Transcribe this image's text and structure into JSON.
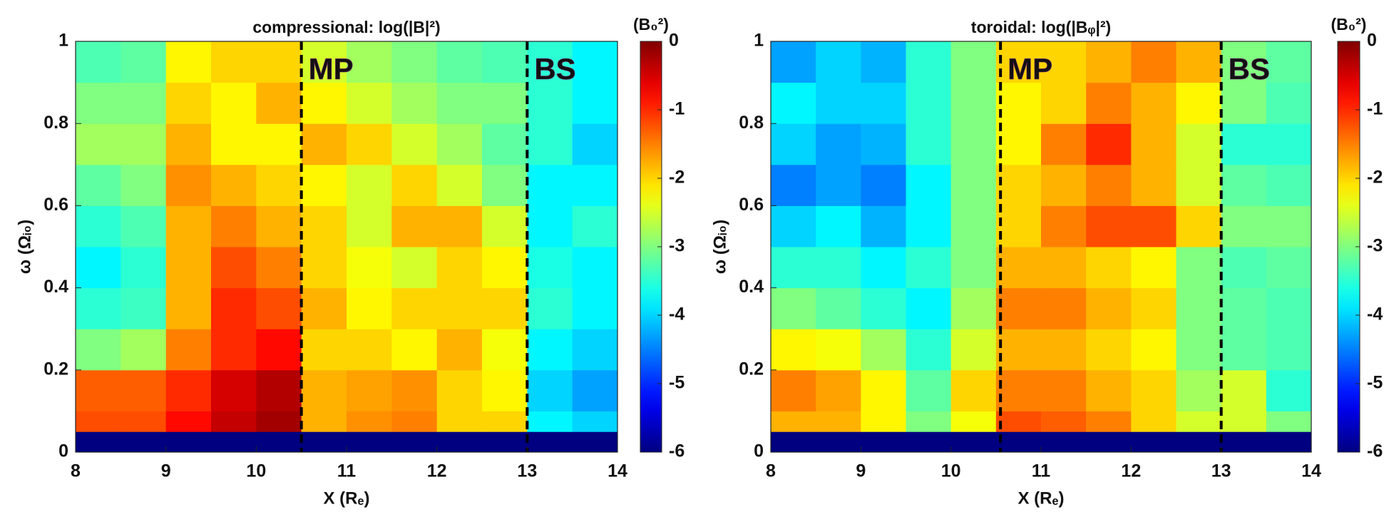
{
  "chart_data": [
    {
      "type": "heatmap",
      "title": "compressional: log(|B|²)",
      "xlabel": "X (Rₑ)",
      "ylabel": "ω (Ωᵢ₀)",
      "colorbar_label": "(B₀²)",
      "colormap": "jet",
      "xlim": [
        8,
        14
      ],
      "ylim": [
        0,
        1
      ],
      "xticks": [
        8,
        9,
        10,
        11,
        12,
        13,
        14
      ],
      "yticks": [
        0,
        0.2,
        0.4,
        0.6,
        0.8,
        1
      ],
      "clim": [
        -6,
        0
      ],
      "cticks": [
        -6,
        -5,
        -4,
        -3,
        -2,
        -1,
        0
      ],
      "x": [
        8,
        8.5,
        9,
        9.5,
        10,
        10.5,
        11,
        11.5,
        12,
        12.5,
        13,
        13.5,
        14
      ],
      "y": [
        0,
        0.05,
        0.1,
        0.2,
        0.3,
        0.4,
        0.5,
        0.6,
        0.7,
        0.8,
        0.9,
        1
      ],
      "z": [
        [
          -6,
          -6,
          -6,
          -6,
          -6,
          -6,
          -6,
          -6,
          -6,
          -6,
          -6,
          -6
        ],
        [
          -1.2,
          -1.2,
          -0.8,
          -0.4,
          -0.2,
          -1.8,
          -1.6,
          -1.5,
          -2,
          -2,
          -3.8,
          -4
        ],
        [
          -1.3,
          -1.3,
          -1,
          -0.5,
          -0.3,
          -1.8,
          -1.7,
          -1.6,
          -2,
          -2.2,
          -4,
          -4.3
        ],
        [
          -3,
          -2.8,
          -1.5,
          -1,
          -0.8,
          -2,
          -2,
          -2.2,
          -1.8,
          -2.3,
          -3.8,
          -4
        ],
        [
          -3.5,
          -3.4,
          -1.8,
          -1,
          -1.2,
          -1.8,
          -2.2,
          -2,
          -2,
          -2,
          -3.5,
          -3.8
        ],
        [
          -3.8,
          -3.5,
          -1.8,
          -1.2,
          -1.5,
          -2,
          -2.3,
          -2.5,
          -2,
          -2.2,
          -3.6,
          -3.8
        ],
        [
          -3.5,
          -3.3,
          -1.8,
          -1.5,
          -1.8,
          -2,
          -2.5,
          -1.8,
          -1.8,
          -2.5,
          -3.8,
          -3.5
        ],
        [
          -3.2,
          -3,
          -1.6,
          -1.8,
          -2,
          -2.2,
          -2.5,
          -2,
          -2.5,
          -3,
          -3.8,
          -3.8
        ],
        [
          -2.8,
          -2.8,
          -1.8,
          -2.2,
          -2.2,
          -1.8,
          -2,
          -2.5,
          -2.8,
          -3.2,
          -3.5,
          -4
        ],
        [
          -3,
          -3,
          -2,
          -2.2,
          -1.8,
          -2.2,
          -2.5,
          -2.8,
          -3,
          -3,
          -3.5,
          -3.8
        ],
        [
          -3.3,
          -3.2,
          -2.2,
          -2,
          -2,
          -2.5,
          -2.8,
          -3,
          -3.2,
          -3.3,
          -3.5,
          -3.8
        ]
      ],
      "vlines": [
        {
          "x": 10.5,
          "label": "MP"
        },
        {
          "x": 13,
          "label": "BS"
        }
      ],
      "vline_color": "#000000",
      "annotation_color": "#d94bd9"
    },
    {
      "type": "heatmap",
      "title": "toroidal: log(|Bᵩ|²)",
      "xlabel": "X (Rₑ)",
      "ylabel": "ω (Ωᵢ₀)",
      "colorbar_label": "(B₀²)",
      "colormap": "jet",
      "xlim": [
        8,
        14
      ],
      "ylim": [
        0,
        1
      ],
      "xticks": [
        8,
        9,
        10,
        11,
        12,
        13,
        14
      ],
      "yticks": [
        0,
        0.2,
        0.4,
        0.6,
        0.8,
        1
      ],
      "clim": [
        -6,
        0
      ],
      "cticks": [
        -6,
        -5,
        -4,
        -3,
        -2,
        -1,
        0
      ],
      "x": [
        8,
        8.5,
        9,
        9.5,
        10,
        10.5,
        11,
        11.5,
        12,
        12.5,
        13,
        13.5,
        14
      ],
      "y": [
        0,
        0.05,
        0.1,
        0.2,
        0.3,
        0.4,
        0.5,
        0.6,
        0.7,
        0.8,
        0.9,
        1
      ],
      "z": [
        [
          -6,
          -6,
          -6,
          -6,
          -6,
          -6,
          -6,
          -6,
          -6,
          -6,
          -6,
          -6
        ],
        [
          -1.8,
          -1.8,
          -2.2,
          -3,
          -2.3,
          -1.2,
          -1.3,
          -1.5,
          -2,
          -2.5,
          -2.5,
          -3
        ],
        [
          -1.5,
          -1.7,
          -2.2,
          -3.2,
          -2,
          -1.5,
          -1.5,
          -1.8,
          -2,
          -2.8,
          -2.5,
          -3.5
        ],
        [
          -2.2,
          -2.3,
          -2.8,
          -3.5,
          -2.5,
          -1.8,
          -1.8,
          -2,
          -2.2,
          -3,
          -3.2,
          -3.3
        ],
        [
          -3,
          -3.2,
          -3.5,
          -3.8,
          -2.8,
          -1.5,
          -1.5,
          -1.8,
          -2,
          -3,
          -3.2,
          -3.3
        ],
        [
          -3.5,
          -3.5,
          -3.8,
          -3.5,
          -3,
          -1.8,
          -1.8,
          -2,
          -2.2,
          -3,
          -3.3,
          -3.2
        ],
        [
          -4,
          -3.8,
          -4.2,
          -3.8,
          -3,
          -2,
          -1.5,
          -1.2,
          -1.2,
          -2,
          -3,
          -3
        ],
        [
          -4.5,
          -4.3,
          -4.5,
          -3.8,
          -3,
          -2,
          -1.8,
          -1.5,
          -1.8,
          -2.5,
          -3.2,
          -3.3
        ],
        [
          -4,
          -4.3,
          -4.2,
          -3.5,
          -3,
          -2.2,
          -1.5,
          -1,
          -1.8,
          -2.5,
          -3.5,
          -3.5
        ],
        [
          -3.8,
          -4,
          -4,
          -3.5,
          -3,
          -2.2,
          -2,
          -1.5,
          -1.8,
          -2.2,
          -3,
          -3.3
        ],
        [
          -4.3,
          -4,
          -4.2,
          -3.5,
          -3,
          -2,
          -2,
          -1.8,
          -1.5,
          -1.8,
          -3,
          -3.2
        ]
      ],
      "vlines": [
        {
          "x": 10.55,
          "label": "MP"
        },
        {
          "x": 13,
          "label": "BS"
        }
      ],
      "vline_color": "#000000",
      "annotation_color": "#d94bd9"
    }
  ]
}
